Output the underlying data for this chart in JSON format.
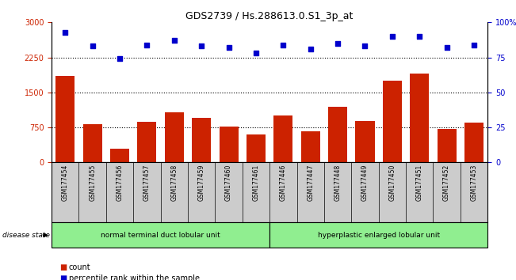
{
  "title": "GDS2739 / Hs.288613.0.S1_3p_at",
  "samples": [
    "GSM177454",
    "GSM177455",
    "GSM177456",
    "GSM177457",
    "GSM177458",
    "GSM177459",
    "GSM177460",
    "GSM177461",
    "GSM177446",
    "GSM177447",
    "GSM177448",
    "GSM177449",
    "GSM177450",
    "GSM177451",
    "GSM177452",
    "GSM177453"
  ],
  "counts": [
    1850,
    820,
    300,
    870,
    1080,
    950,
    760,
    600,
    1000,
    660,
    1200,
    880,
    1750,
    1900,
    720,
    860
  ],
  "percentiles": [
    93,
    83,
    74,
    84,
    87,
    83,
    82,
    78,
    84,
    81,
    85,
    83,
    90,
    90,
    82,
    84
  ],
  "groups": [
    {
      "label": "normal terminal duct lobular unit",
      "start": 0,
      "end": 8,
      "color": "#90EE90"
    },
    {
      "label": "hyperplastic enlarged lobular unit",
      "start": 8,
      "end": 16,
      "color": "#90EE90"
    }
  ],
  "bar_color": "#CC2200",
  "dot_color": "#0000CC",
  "ylim_left": [
    0,
    3000
  ],
  "ylim_right": [
    0,
    100
  ],
  "yticks_left": [
    0,
    750,
    1500,
    2250,
    3000
  ],
  "yticks_right": [
    0,
    25,
    50,
    75,
    100
  ],
  "grid_values": [
    750,
    1500,
    2250
  ],
  "background_color": "#ffffff",
  "tick_label_area_color": "#cccccc",
  "disease_state_label": "disease state",
  "legend_count_label": "count",
  "legend_pct_label": "percentile rank within the sample"
}
